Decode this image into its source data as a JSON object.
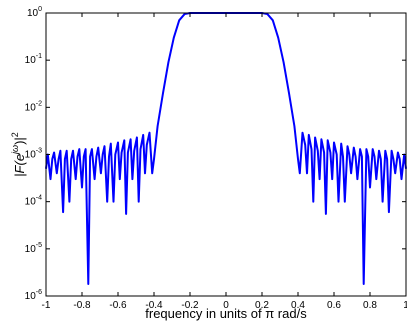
{
  "chart_data": {
    "type": "line",
    "xlabel": "frequency in units of π rad/s",
    "ylabel": "|F(e^{jω})|^2",
    "ylabel_parts": {
      "prefix": "|F(e",
      "sup1": "jω",
      "mid": ")|",
      "sup2": "2"
    },
    "xlim": [
      -1,
      1
    ],
    "ylim": [
      1e-06,
      1
    ],
    "yscale": "log",
    "grid": false,
    "legend": "none",
    "xticks": [
      -1,
      -0.8,
      -0.6,
      -0.4,
      -0.2,
      0,
      0.2,
      0.4,
      0.6,
      0.8,
      1
    ],
    "xtick_labels": [
      "-1",
      "-0.8",
      "-0.6",
      "-0.4",
      "-0.2",
      "0",
      "0.2",
      "0.4",
      "0.6",
      "0.8",
      "1"
    ],
    "yticks": [
      1e-06,
      1e-05,
      0.0001,
      0.001,
      0.01,
      0.1,
      1
    ],
    "ytick_labels": [
      {
        "base": "10",
        "exp": "-6"
      },
      {
        "base": "10",
        "exp": "-5"
      },
      {
        "base": "10",
        "exp": "-4"
      },
      {
        "base": "10",
        "exp": "-3"
      },
      {
        "base": "10",
        "exp": "-2"
      },
      {
        "base": "10",
        "exp": "-1"
      },
      {
        "base": "10",
        "exp": "0"
      }
    ],
    "series": [
      {
        "color": "#0000ff",
        "x": [
          -1.0,
          -0.99,
          -0.975,
          -0.965,
          -0.955,
          -0.94,
          -0.93,
          -0.92,
          -0.905,
          -0.895,
          -0.885,
          -0.87,
          -0.86,
          -0.85,
          -0.835,
          -0.825,
          -0.815,
          -0.8,
          -0.79,
          -0.78,
          -0.765,
          -0.755,
          -0.745,
          -0.73,
          -0.72,
          -0.71,
          -0.695,
          -0.685,
          -0.675,
          -0.66,
          -0.65,
          -0.64,
          -0.625,
          -0.615,
          -0.6,
          -0.59,
          -0.58,
          -0.565,
          -0.555,
          -0.545,
          -0.53,
          -0.52,
          -0.51,
          -0.495,
          -0.485,
          -0.475,
          -0.46,
          -0.45,
          -0.44,
          -0.425,
          -0.41,
          -0.4,
          -0.38,
          -0.35,
          -0.32,
          -0.29,
          -0.26,
          -0.23,
          -0.2,
          -0.15,
          -0.1,
          0.0,
          0.1,
          0.15,
          0.2,
          0.23,
          0.26,
          0.29,
          0.32,
          0.35,
          0.38,
          0.4,
          0.41,
          0.425,
          0.44,
          0.45,
          0.46,
          0.475,
          0.485,
          0.495,
          0.51,
          0.52,
          0.53,
          0.545,
          0.555,
          0.565,
          0.58,
          0.59,
          0.6,
          0.615,
          0.625,
          0.64,
          0.65,
          0.66,
          0.675,
          0.685,
          0.695,
          0.71,
          0.72,
          0.73,
          0.745,
          0.755,
          0.765,
          0.78,
          0.79,
          0.8,
          0.815,
          0.825,
          0.835,
          0.85,
          0.86,
          0.87,
          0.885,
          0.895,
          0.905,
          0.92,
          0.93,
          0.94,
          0.955,
          0.965,
          0.975,
          0.99,
          1.0
        ],
        "y": [
          0.0005,
          0.001,
          0.0003,
          0.0008,
          0.0011,
          0.0004,
          0.0008,
          0.0012,
          6e-05,
          0.0008,
          0.0012,
          0.0001,
          0.0008,
          0.0012,
          0.0003,
          0.0009,
          0.0013,
          0.0002,
          0.0009,
          0.0013,
          1.8e-06,
          0.0009,
          0.0013,
          0.0003,
          0.0009,
          0.0014,
          0.0004,
          0.001,
          0.0015,
          0.0001,
          0.0009,
          0.0017,
          0.0001,
          0.001,
          0.0018,
          0.0003,
          0.0011,
          0.002,
          5.5e-05,
          0.0011,
          0.0021,
          0.0003,
          0.0012,
          0.0023,
          0.0001,
          0.0013,
          0.0026,
          0.0004,
          0.0016,
          0.0029,
          0.0004,
          0.0008,
          0.004,
          0.02,
          0.09,
          0.3,
          0.7,
          0.95,
          1.0,
          1.0,
          1.0,
          1.0,
          1.0,
          1.0,
          1.0,
          0.95,
          0.7,
          0.3,
          0.09,
          0.02,
          0.004,
          0.0008,
          0.0004,
          0.0029,
          0.0016,
          0.0004,
          0.0026,
          0.0013,
          0.0001,
          0.0023,
          0.0012,
          0.0003,
          0.0021,
          0.0011,
          5.5e-05,
          0.002,
          0.0011,
          0.0003,
          0.0018,
          0.001,
          0.0001,
          0.0017,
          0.0009,
          0.0001,
          0.0015,
          0.001,
          0.0004,
          0.0014,
          0.0009,
          0.0003,
          0.0013,
          0.0009,
          1.8e-06,
          0.0013,
          0.0009,
          0.0002,
          0.0013,
          0.0009,
          0.0003,
          0.0012,
          0.0008,
          0.0001,
          0.0012,
          0.0008,
          6e-05,
          0.0012,
          0.0008,
          0.0004,
          0.0011,
          0.0008,
          0.0003,
          0.001,
          0.0005
        ]
      }
    ]
  }
}
